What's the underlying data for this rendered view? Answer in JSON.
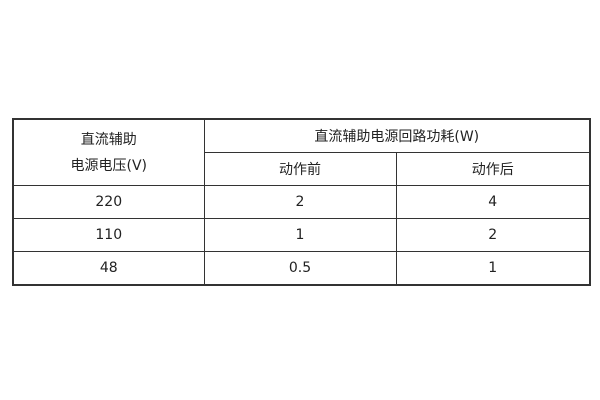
{
  "table": {
    "header": {
      "voltage_line1": "直流辅助",
      "voltage_line2": "电源电压(V)",
      "power": "直流辅助电源回路功耗(W)",
      "before": "动作前",
      "after": "动作后"
    },
    "rows": [
      {
        "voltage": "220",
        "before": "2",
        "after": "4"
      },
      {
        "voltage": "110",
        "before": "1",
        "after": "2"
      },
      {
        "voltage": "48",
        "before": "0.5",
        "after": "1"
      }
    ]
  }
}
